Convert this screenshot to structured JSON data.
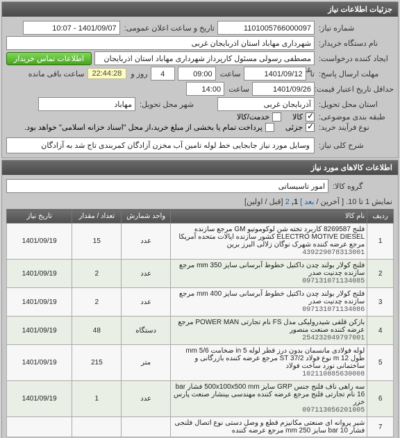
{
  "panels": {
    "details_title": "جزئیات اطلاعات نیاز",
    "items_title": "اطلاعات کالاهای مورد نیاز"
  },
  "labels": {
    "req_no": "شماره نیاز:",
    "announce": "تاریخ و ساعت اعلان عمومی:",
    "buyer_org": "نام دستگاه خریدار:",
    "creator": "ایجاد کننده درخواست:",
    "contact_btn": "اطلاعات تماس خریدار",
    "reply_deadline": "مهلت ارسال پاسخ:",
    "until": "تا",
    "time": "ساعت",
    "day_and": "روز و",
    "remaining": "ساعت باقی مانده",
    "price_valid_min": "حداقل تاریخ اعتبار قیمت:",
    "delivery_province": "استان محل تحویل:",
    "delivery_city": "شهر محل تحویل:",
    "subject_group": "طبقه بندی موضوعی:",
    "goods": "کالا",
    "service": "خدمت/کالا",
    "buy_type": "نوع فرآیند خرید:",
    "partial": "جزئی",
    "partial_note": "پرداخت تمام یا بخشی از مبلغ خرید،از محل \"اسناد خزانه اسلامی\" خواهد بود.",
    "overall_desc": "شرح کلی نیاز:",
    "goods_group": "گروه کالا:",
    "pager_prefix": "نمایش 1 تا 10.",
    "pager_last": "[ آخرین /",
    "pager_next": "بعد ]",
    "pager_cur": "1,",
    "pager_p2": "2",
    "pager_firstprev": "[قبل / اولین]"
  },
  "values": {
    "req_no": "1101005766000097",
    "announce": "1401/09/07 - 10:07",
    "buyer_org": "شهرداری مهاباد استان اذربایجان غربی",
    "creator": "مصطفی رسولی مسئول کارپرداز  شهرداری مهاباد استان اذربایجان غربی",
    "reply_date": "1401/09/12",
    "reply_time": "09:00",
    "days_left": "4",
    "countdown": "22:44:28",
    "price_valid_date": "1401/09/26",
    "price_valid_time": "14:00",
    "province": "آذربایجان غربی",
    "city": "مهاباد",
    "overall_desc": "وسایل مورد نیاز جابجایی خط لوله تامین آب مخزن آزادگان کمربندی تاج شد به آزادگان",
    "goods_group": "امور تاسیساتی"
  },
  "checks": {
    "goods": true,
    "service": false,
    "partial": true,
    "islamic": false
  },
  "grid": {
    "headers": {
      "idx": "ردیف",
      "code": "نام کالا",
      "unit": "واحد شمارش",
      "qty": "تعداد / مقدار",
      "date": "تاریخ نیاز"
    },
    "rows": [
      {
        "idx": "1",
        "code": "439229078313001",
        "name": "فلنج 8269587 کاربرد تخته شن لوکوموتیو GM مرجع سازنده ELECTRO MOTIVE DIESEL کشور سازنده ایالات متحده آمریکا مرجع عرضه کننده شهرک نوگان زلالی البرز برین",
        "unit": "عدد",
        "qty": "15",
        "date": "1401/09/19"
      },
      {
        "idx": "2",
        "code": "097131071134085",
        "name": "فلنج کولار بولند چدن داکتیل خطوط آبرسانی سایز 350 mm مرجع سازنده چدنیت صدر",
        "unit": "عدد",
        "qty": "2",
        "date": "1401/09/19"
      },
      {
        "idx": "3",
        "code": "097131071134086",
        "name": "فلنج کولار بولند چدن داکتیل خطوط آبرسانی سایز 400 mm مرجع سازنده چدنیت صدر",
        "unit": "عدد",
        "qty": "2",
        "date": "1401/09/19"
      },
      {
        "idx": "4",
        "code": "254232049797001",
        "name": "بازکن قلفی شیدرولیکی مدل FS نام تجارتی POWER MAN مرجع عرضه کننده صنعت منصور",
        "unit": "دستگاه",
        "qty": "48",
        "date": "1401/09/19"
      },
      {
        "idx": "5",
        "code": "102110885630008",
        "name": "لوله فولادی مانسمان بدون درز قطر لوله in 5 ضخامت mm 5/6 طول m 12 نوع فولاد ST 37/2 مرجع عرضه کننده بازرگانی و ساختمانی نورد ساخت فولاد",
        "unit": "متر",
        "qty": "215",
        "date": "1401/09/19"
      },
      {
        "idx": "6",
        "code": "097113056201005",
        "name": "سه راهی ناف فلنج جنس GRP سایز 500x100x500 mm فشار bar 16 نام تجارتی فلنج مرجع عرضه کننده مهندسی بینشار صنعت پارس خزر",
        "unit": "عدد",
        "qty": "1",
        "date": "1401/09/19"
      },
      {
        "idx": "7",
        "code": "",
        "name": "شیر پروانه ای صنعتی مکانیزم قطع و وصل دستی نوع اتصال فلنجی  فشار bar 10  سایز mm 250  مرجع عرضه کننده",
        "unit": "",
        "qty": "",
        "date": ""
      }
    ]
  }
}
